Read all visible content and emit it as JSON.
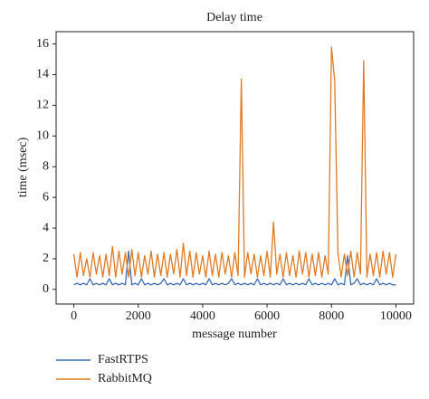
{
  "chart_data": {
    "type": "line",
    "title": "Delay time",
    "xlabel": "message number",
    "ylabel": "time (msec)",
    "xlim": [
      -550,
      10550
    ],
    "ylim": [
      -0.95,
      16.8
    ],
    "xticks": [
      0,
      2000,
      4000,
      6000,
      8000,
      10000
    ],
    "yticks": [
      0,
      2,
      4,
      6,
      8,
      10,
      12,
      14,
      16
    ],
    "legend": "below",
    "x": [
      0,
      100,
      200,
      300,
      400,
      500,
      600,
      700,
      800,
      900,
      1000,
      1100,
      1200,
      1300,
      1400,
      1500,
      1600,
      1700,
      1800,
      1900,
      2000,
      2100,
      2200,
      2300,
      2400,
      2500,
      2600,
      2700,
      2800,
      2900,
      3000,
      3100,
      3200,
      3300,
      3400,
      3500,
      3600,
      3700,
      3800,
      3900,
      4000,
      4100,
      4200,
      4300,
      4400,
      4500,
      4600,
      4700,
      4800,
      4900,
      5000,
      5100,
      5200,
      5300,
      5400,
      5500,
      5600,
      5700,
      5800,
      5900,
      6000,
      6100,
      6200,
      6300,
      6400,
      6500,
      6600,
      6700,
      6800,
      6900,
      7000,
      7100,
      7200,
      7300,
      7400,
      7500,
      7600,
      7700,
      7800,
      7900,
      8000,
      8100,
      8200,
      8300,
      8400,
      8500,
      8600,
      8700,
      8800,
      8900,
      9000,
      9100,
      9200,
      9300,
      9400,
      9500,
      9600,
      9700,
      9800,
      9900,
      10000
    ],
    "series": [
      {
        "name": "FastRTPS",
        "color": "#3d6db5",
        "values": [
          0.3,
          0.4,
          0.3,
          0.4,
          0.3,
          0.7,
          0.3,
          0.4,
          0.3,
          0.4,
          0.3,
          0.7,
          0.3,
          0.4,
          0.3,
          0.4,
          0.3,
          2.5,
          0.3,
          0.4,
          0.3,
          0.7,
          0.3,
          0.4,
          0.3,
          0.4,
          0.3,
          0.4,
          0.7,
          0.3,
          0.4,
          0.3,
          0.4,
          0.3,
          0.7,
          0.3,
          0.4,
          0.3,
          0.4,
          0.3,
          0.4,
          0.3,
          0.7,
          0.3,
          0.4,
          0.3,
          0.4,
          0.3,
          0.4,
          0.7,
          0.3,
          0.4,
          0.3,
          0.4,
          0.3,
          0.4,
          0.3,
          0.7,
          0.3,
          0.4,
          0.3,
          0.4,
          0.3,
          0.4,
          0.3,
          0.7,
          0.3,
          0.4,
          0.3,
          0.4,
          0.3,
          0.4,
          0.3,
          0.7,
          0.3,
          0.4,
          0.3,
          0.4,
          0.3,
          0.4,
          0.3,
          0.7,
          0.3,
          0.4,
          0.3,
          2.2,
          0.3,
          0.4,
          0.7,
          0.3,
          0.4,
          0.3,
          0.4,
          0.3,
          0.7,
          0.3,
          0.4,
          0.3,
          0.4,
          0.3,
          0.3
        ]
      },
      {
        "name": "RabbitMQ",
        "color": "#e07b22",
        "values": [
          2.3,
          0.8,
          2.4,
          0.9,
          2.0,
          0.8,
          2.4,
          1.0,
          2.2,
          0.8,
          2.3,
          0.9,
          2.8,
          0.8,
          2.5,
          1.0,
          2.4,
          0.8,
          2.6,
          0.9,
          2.4,
          0.8,
          2.2,
          1.0,
          2.5,
          0.8,
          2.3,
          0.9,
          2.4,
          0.8,
          2.3,
          1.0,
          2.6,
          0.8,
          3.0,
          0.9,
          2.5,
          0.8,
          2.4,
          1.0,
          2.2,
          0.8,
          2.5,
          0.9,
          2.3,
          0.8,
          2.4,
          1.0,
          2.2,
          0.8,
          2.4,
          0.9,
          13.7,
          0.8,
          2.4,
          1.0,
          2.3,
          0.8,
          2.2,
          0.9,
          2.5,
          0.8,
          4.4,
          1.0,
          2.3,
          0.8,
          2.4,
          0.9,
          2.2,
          0.8,
          2.5,
          1.0,
          2.4,
          0.8,
          2.3,
          0.9,
          2.4,
          0.8,
          2.2,
          1.0,
          15.8,
          13.6,
          2.4,
          0.8,
          2.3,
          0.9,
          2.5,
          0.8,
          2.4,
          1.0,
          14.9,
          0.8,
          2.3,
          0.9,
          2.4,
          0.8,
          2.5,
          1.0,
          2.4,
          0.8,
          2.3
        ]
      }
    ]
  }
}
